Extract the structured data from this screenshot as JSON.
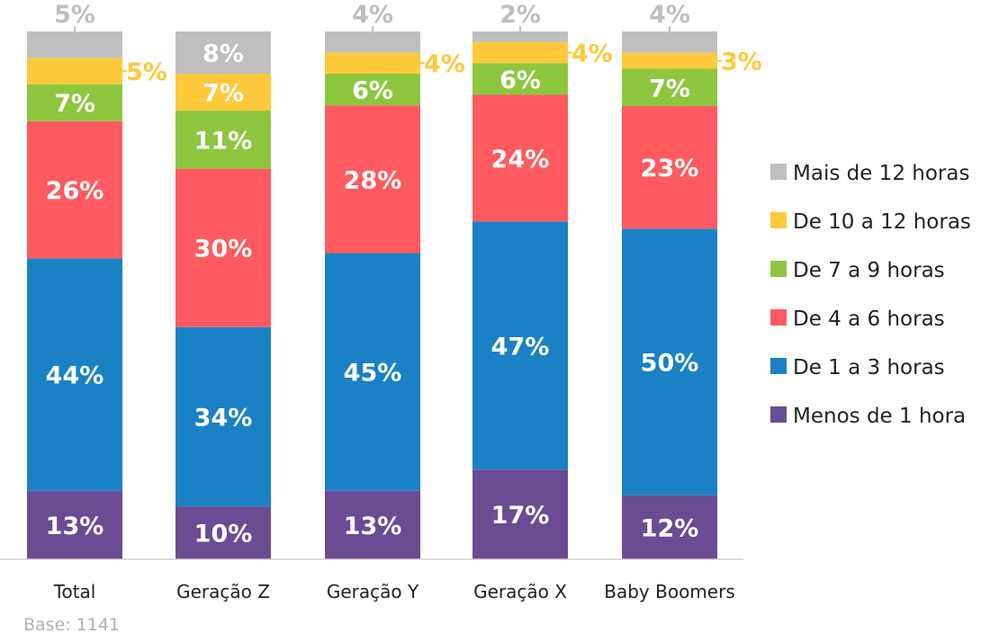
{
  "chart_data": {
    "type": "bar",
    "stacked": true,
    "percent": true,
    "categories": [
      "Total",
      "Geração Z",
      "Geração Y",
      "Geração X",
      "Baby Boomers"
    ],
    "series": [
      {
        "name": "Menos de 1 hora",
        "color": "#6a4c93",
        "values": [
          13,
          10,
          13,
          17,
          12
        ]
      },
      {
        "name": "De 1 a 3 horas",
        "color": "#1a82c4",
        "values": [
          44,
          34,
          45,
          47,
          50
        ]
      },
      {
        "name": "De 4 a 6 horas",
        "color": "#ff5a5f",
        "values": [
          26,
          30,
          28,
          24,
          23
        ]
      },
      {
        "name": "De 7 a 9 horas",
        "color": "#8dc63f",
        "values": [
          7,
          11,
          6,
          6,
          7
        ]
      },
      {
        "name": "De 10 a 12 horas",
        "color": "#ffc93c",
        "values": [
          5,
          7,
          4,
          4,
          3
        ]
      },
      {
        "name": "Mais de 12 horas",
        "color": "#bfbfbf",
        "values": [
          5,
          8,
          4,
          2,
          4
        ]
      }
    ],
    "value_suffix": "%",
    "legend_position": "right",
    "grid": false,
    "footnote": "Base: 1141"
  }
}
